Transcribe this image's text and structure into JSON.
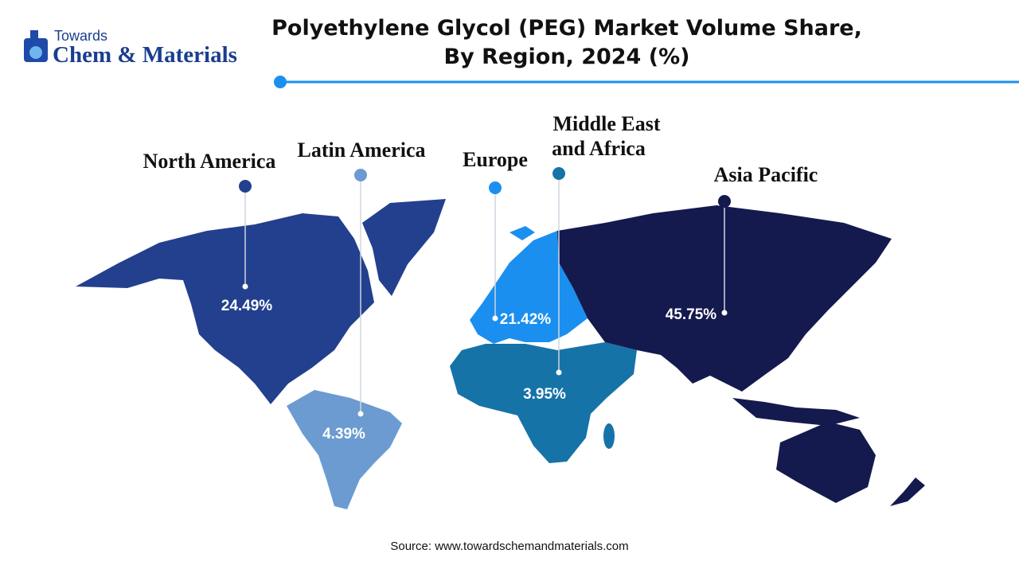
{
  "logo": {
    "line1": "Towards",
    "line2": "Chem & Materials"
  },
  "header": {
    "title_lines": [
      "Polyethylene Glycol (PEG) Market Volume Share,",
      "By Region, 2024 (%)"
    ]
  },
  "regions": [
    {
      "name_lines": [
        "North America"
      ],
      "share": "24.49%"
    },
    {
      "name_lines": [
        "Latin America"
      ],
      "share": "4.39%"
    },
    {
      "name_lines": [
        "Europe"
      ],
      "share": "21.42%"
    },
    {
      "name_lines": [
        "Middle East",
        "and Africa"
      ],
      "share": "3.95%"
    },
    {
      "name_lines": [
        "Asia Pacific"
      ],
      "share": "45.75%"
    }
  ],
  "footer": {
    "source": "Source: www.towardschemandmaterials.com"
  }
}
